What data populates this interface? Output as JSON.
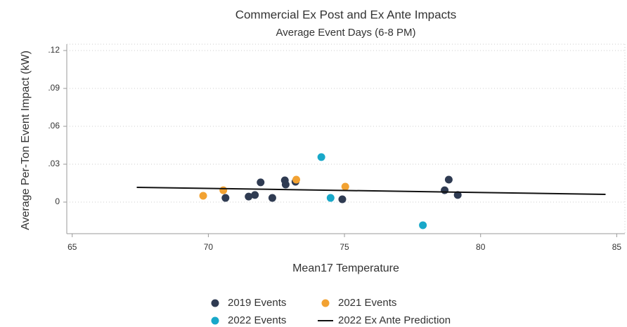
{
  "chart_data": {
    "type": "scatter",
    "title": "Commercial Ex Post and Ex Ante Impacts",
    "subtitle": "Average Event Days (6-8 PM)",
    "x_label": "Mean17 Temperature",
    "y_label": "Average Per-Ton Event Impact (kW)",
    "xlim": [
      64.8,
      85.3
    ],
    "ylim": [
      -0.025,
      0.125
    ],
    "xticks": [
      65,
      70,
      75,
      80,
      85
    ],
    "yticks": [
      0,
      {
        "value": 0.03,
        "label": ".03"
      },
      {
        "value": 0.06,
        "label": ".06"
      },
      {
        "value": 0.09,
        "label": ".09"
      },
      {
        "value": 0.12,
        "label": ".12"
      }
    ],
    "grid": true,
    "series": [
      {
        "name": "2019 Events",
        "type": "scatter",
        "color": "#2f3b52",
        "x": [
          70.63,
          71.48,
          71.71,
          71.92,
          72.35,
          72.81,
          72.84,
          73.2,
          74.92,
          78.68,
          78.83,
          79.16
        ],
        "values": [
          0.0033,
          0.0044,
          0.0056,
          0.0156,
          0.0033,
          0.0172,
          0.0139,
          0.0161,
          0.0022,
          0.0094,
          0.0178,
          0.0056
        ]
      },
      {
        "name": "2021 Events",
        "type": "scatter",
        "color": "#f2a232",
        "x": [
          69.81,
          70.55,
          73.23,
          75.03
        ],
        "values": [
          0.005,
          0.0094,
          0.0178,
          0.0122
        ]
      },
      {
        "name": "2022 Events",
        "type": "scatter",
        "color": "#18a8c9",
        "x": [
          74.15,
          74.49,
          77.88
        ],
        "values": [
          0.0356,
          0.0033,
          -0.0183
        ]
      },
      {
        "name": "2022 Ex Ante Prediction",
        "type": "line",
        "color": "#111111",
        "x": [
          67.37,
          84.59
        ],
        "values": [
          0.0117,
          0.0061
        ]
      }
    ]
  }
}
